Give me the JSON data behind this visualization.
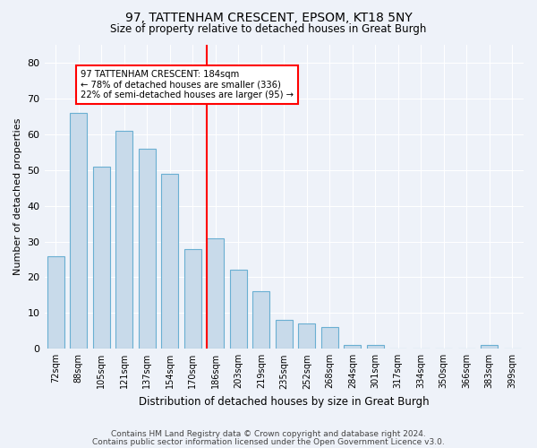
{
  "title_line1": "97, TATTENHAM CRESCENT, EPSOM, KT18 5NY",
  "title_line2": "Size of property relative to detached houses in Great Burgh",
  "xlabel": "Distribution of detached houses by size in Great Burgh",
  "ylabel": "Number of detached properties",
  "categories": [
    "72sqm",
    "88sqm",
    "105sqm",
    "121sqm",
    "137sqm",
    "154sqm",
    "170sqm",
    "186sqm",
    "203sqm",
    "219sqm",
    "235sqm",
    "252sqm",
    "268sqm",
    "284sqm",
    "301sqm",
    "317sqm",
    "334sqm",
    "350sqm",
    "366sqm",
    "383sqm",
    "399sqm"
  ],
  "values": [
    26,
    66,
    51,
    61,
    56,
    49,
    28,
    31,
    22,
    16,
    8,
    7,
    6,
    1,
    1,
    0,
    0,
    0,
    0,
    1,
    0
  ],
  "bar_color": "#c8daea",
  "bar_edge_color": "#6aafd2",
  "annotation_line1": "97 TATTENHAM CRESCENT: 184sqm",
  "annotation_line2": "← 78% of detached houses are smaller (336)",
  "annotation_line3": "22% of semi-detached houses are larger (95) →",
  "vline_index": 7,
  "ylim": [
    0,
    85
  ],
  "yticks": [
    0,
    10,
    20,
    30,
    40,
    50,
    60,
    70,
    80
  ],
  "background_color": "#eef2f9",
  "grid_color": "#ffffff",
  "footer_line1": "Contains HM Land Registry data © Crown copyright and database right 2024.",
  "footer_line2": "Contains public sector information licensed under the Open Government Licence v3.0."
}
